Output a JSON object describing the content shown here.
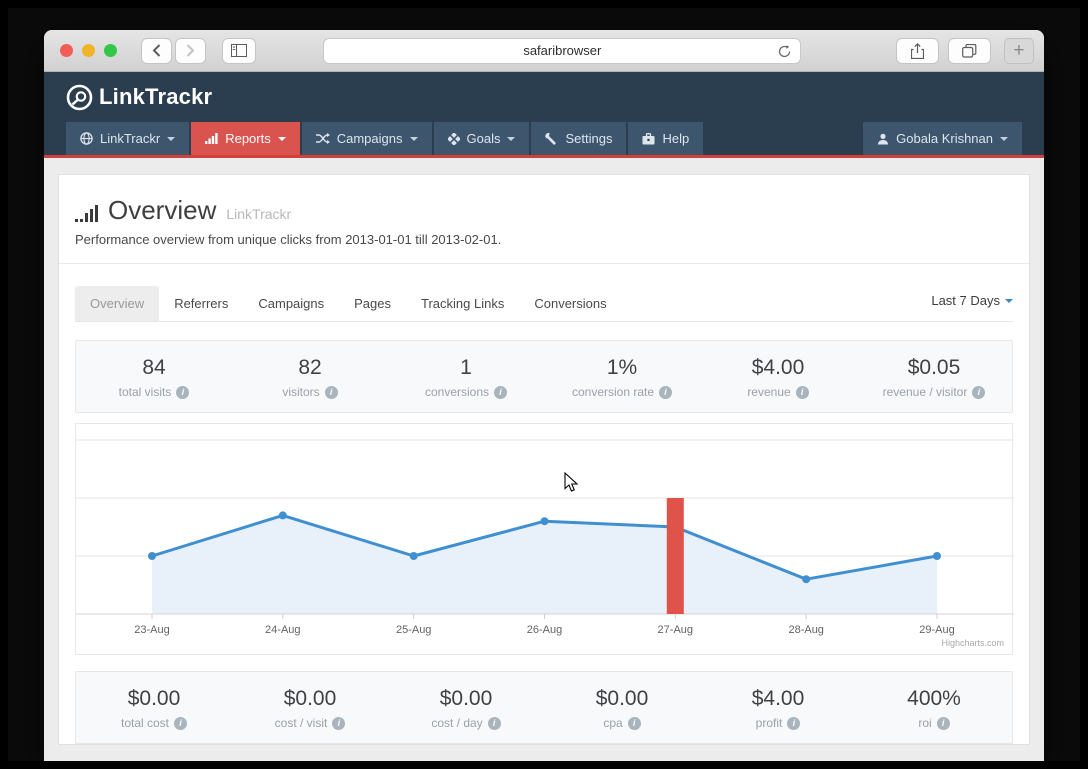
{
  "browser": {
    "url": "safaribrowser",
    "new_tab_label": "+"
  },
  "brand": {
    "logo_text": "LinkTrackr"
  },
  "nav": {
    "items": [
      {
        "label": "LinkTrackr",
        "icon": "globe-icon",
        "caret": true,
        "active": false
      },
      {
        "label": "Reports",
        "icon": "bar-chart-icon",
        "caret": true,
        "active": true
      },
      {
        "label": "Campaigns",
        "icon": "shuffle-icon",
        "caret": true,
        "active": false
      },
      {
        "label": "Goals",
        "icon": "goals-icon",
        "caret": true,
        "active": false
      },
      {
        "label": "Settings",
        "icon": "wrench-icon",
        "caret": false,
        "active": false
      },
      {
        "label": "Help",
        "icon": "briefcase-icon",
        "caret": false,
        "active": false
      }
    ],
    "user": {
      "label": "Gobala Krishnan"
    }
  },
  "page": {
    "title": "Overview",
    "title_suffix": "LinkTrackr",
    "subtitle": "Performance overview from unique clicks from 2013-01-01 till 2013-02-01."
  },
  "tabs": {
    "items": [
      "Overview",
      "Referrers",
      "Campaigns",
      "Pages",
      "Tracking Links",
      "Conversions"
    ],
    "active": "Overview",
    "range_selector": "Last 7 Days"
  },
  "stats_top": [
    {
      "value": "84",
      "label": "total visits"
    },
    {
      "value": "82",
      "label": "visitors"
    },
    {
      "value": "1",
      "label": "conversions"
    },
    {
      "value": "1%",
      "label": "conversion rate"
    },
    {
      "value": "$4.00",
      "label": "revenue"
    },
    {
      "value": "$0.05",
      "label": "revenue / visitor"
    }
  ],
  "stats_bottom": [
    {
      "value": "$0.00",
      "label": "total cost"
    },
    {
      "value": "$0.00",
      "label": "cost / visit"
    },
    {
      "value": "$0.00",
      "label": "cost / day"
    },
    {
      "value": "$0.00",
      "label": "cpa"
    },
    {
      "value": "$4.00",
      "label": "profit"
    },
    {
      "value": "400%",
      "label": "roi"
    }
  ],
  "chart_data": {
    "type": "area",
    "x": [
      "23-Aug",
      "24-Aug",
      "25-Aug",
      "26-Aug",
      "27-Aug",
      "28-Aug",
      "29-Aug"
    ],
    "series": [
      {
        "name": "visits",
        "type": "area",
        "color": "#3f8fd1",
        "fill": "#e8f1fa",
        "values": [
          10,
          17,
          10,
          16,
          15,
          6,
          10
        ]
      },
      {
        "name": "conversions",
        "type": "column",
        "color": "#e0534a",
        "values": [
          0,
          0,
          0,
          0,
          1,
          0,
          0
        ],
        "axis_units_per_conversion": 20
      }
    ],
    "ylim": [
      0,
      30
    ],
    "gridlines": [
      10,
      20,
      30
    ],
    "grid": true,
    "legend": false,
    "credit": "Highcharts.com"
  },
  "colors": {
    "header_bg": "#2b3e50",
    "nav_item_bg": "#3d566e",
    "active_red": "#d9534f",
    "underline_red": "#d43f3a",
    "line_blue": "#3f8fd1",
    "bar_red": "#e0534a",
    "page_bg": "#ececec"
  }
}
